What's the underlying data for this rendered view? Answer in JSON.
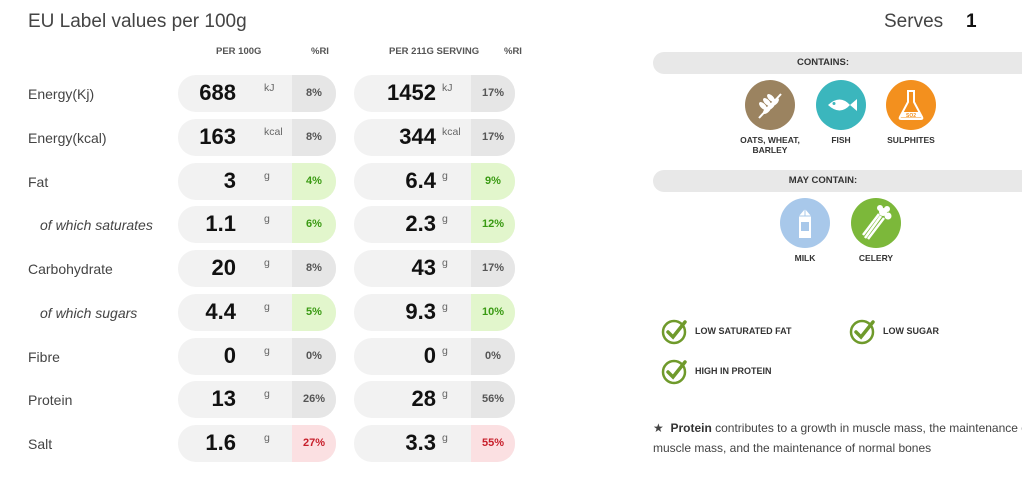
{
  "title": "EU Label values per 100g",
  "serves": {
    "label": "Serves",
    "value": "1"
  },
  "columns": {
    "per100": "PER 100G",
    "ri1": "%RI",
    "perServing": "PER 211G SERVING",
    "ri2": "%RI"
  },
  "rows": [
    {
      "label": "Energy(Kj)",
      "sub": false,
      "v1": "688",
      "u1": "kJ",
      "ri1": "8%",
      "c1": "grey",
      "v2": "1452",
      "u2": "kJ",
      "ri2": "17%",
      "c2": "grey"
    },
    {
      "label": "Energy(kcal)",
      "sub": false,
      "v1": "163",
      "u1": "kcal",
      "ri1": "8%",
      "c1": "grey",
      "v2": "344",
      "u2": "kcal",
      "ri2": "17%",
      "c2": "grey"
    },
    {
      "label": "Fat",
      "sub": false,
      "v1": "3",
      "u1": "g",
      "ri1": "4%",
      "c1": "green",
      "v2": "6.4",
      "u2": "g",
      "ri2": "9%",
      "c2": "green"
    },
    {
      "label": "of which saturates",
      "sub": true,
      "v1": "1.1",
      "u1": "g",
      "ri1": "6%",
      "c1": "green",
      "v2": "2.3",
      "u2": "g",
      "ri2": "12%",
      "c2": "green"
    },
    {
      "label": "Carbohydrate",
      "sub": false,
      "v1": "20",
      "u1": "g",
      "ri1": "8%",
      "c1": "grey",
      "v2": "43",
      "u2": "g",
      "ri2": "17%",
      "c2": "grey"
    },
    {
      "label": "of which sugars",
      "sub": true,
      "v1": "4.4",
      "u1": "g",
      "ri1": "5%",
      "c1": "green",
      "v2": "9.3",
      "u2": "g",
      "ri2": "10%",
      "c2": "green"
    },
    {
      "label": "Fibre",
      "sub": false,
      "v1": "0",
      "u1": "g",
      "ri1": "0%",
      "c1": "grey",
      "v2": "0",
      "u2": "g",
      "ri2": "0%",
      "c2": "grey"
    },
    {
      "label": "Protein",
      "sub": false,
      "v1": "13",
      "u1": "g",
      "ri1": "26%",
      "c1": "grey",
      "v2": "28",
      "u2": "g",
      "ri2": "56%",
      "c2": "grey"
    },
    {
      "label": "Salt",
      "sub": false,
      "v1": "1.6",
      "u1": "g",
      "ri1": "27%",
      "c1": "red",
      "v2": "3.3",
      "u2": "g",
      "ri2": "55%",
      "c2": "red"
    }
  ],
  "contains": {
    "label": "CONTAINS:",
    "items": [
      {
        "name": "OATS, WHEAT, BARLEY",
        "icon": "wheat-icon",
        "color": "#9b8360"
      },
      {
        "name": "FISH",
        "icon": "fish-icon",
        "color": "#3bb6bd"
      },
      {
        "name": "SULPHITES",
        "icon": "flask-icon",
        "color": "#f3901e",
        "icon_text": "SO2"
      }
    ]
  },
  "may_contain": {
    "label": "MAY CONTAIN:",
    "items": [
      {
        "name": "MILK",
        "icon": "milk-carton-icon",
        "color": "#a8c8ea"
      },
      {
        "name": "CELERY",
        "icon": "celery-icon",
        "color": "#7cb83a"
      }
    ]
  },
  "claims": [
    "LOW SATURATED FAT",
    "LOW SUGAR",
    "HIGH IN PROTEIN"
  ],
  "claim_color": "#6f9a2b",
  "note": {
    "star": "★",
    "bold": "Protein",
    "text": " contributes to a growth in muscle mass, the maintenance of muscle mass, and the maintenance of normal bones"
  }
}
